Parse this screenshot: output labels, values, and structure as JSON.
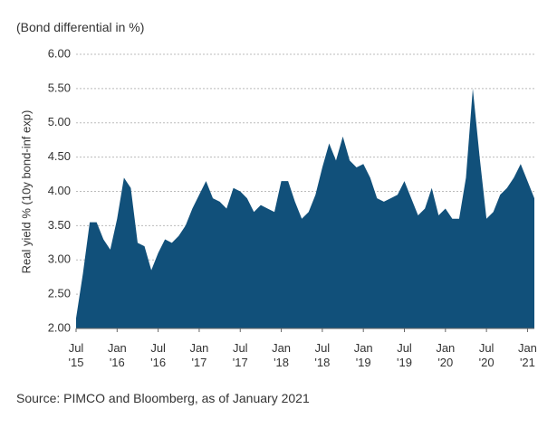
{
  "chart_data": {
    "type": "area",
    "subtitle": "(Bond differential in %)",
    "y_label": "Real yield % (10y bond-inf exp)",
    "source": "Source: PIMCO and Bloomberg, as of January 2021",
    "color": "#11507a",
    "grid": true,
    "x": [
      "2015-07",
      "2015-08",
      "2015-09",
      "2015-10",
      "2015-11",
      "2015-12",
      "2016-01",
      "2016-02",
      "2016-03",
      "2016-04",
      "2016-05",
      "2016-06",
      "2016-07",
      "2016-08",
      "2016-09",
      "2016-10",
      "2016-11",
      "2016-12",
      "2017-01",
      "2017-02",
      "2017-03",
      "2017-04",
      "2017-05",
      "2017-06",
      "2017-07",
      "2017-08",
      "2017-09",
      "2017-10",
      "2017-11",
      "2017-12",
      "2018-01",
      "2018-02",
      "2018-03",
      "2018-04",
      "2018-05",
      "2018-06",
      "2018-07",
      "2018-08",
      "2018-09",
      "2018-10",
      "2018-11",
      "2018-12",
      "2019-01",
      "2019-02",
      "2019-03",
      "2019-04",
      "2019-05",
      "2019-06",
      "2019-07",
      "2019-08",
      "2019-09",
      "2019-10",
      "2019-11",
      "2019-12",
      "2020-01",
      "2020-02",
      "2020-03",
      "2020-04",
      "2020-05",
      "2020-06",
      "2020-07",
      "2020-08",
      "2020-09",
      "2020-10",
      "2020-11",
      "2020-12",
      "2021-01",
      "2021-02"
    ],
    "values": [
      2.15,
      2.8,
      3.55,
      3.55,
      3.3,
      3.15,
      3.6,
      4.2,
      4.05,
      3.25,
      3.2,
      2.85,
      3.1,
      3.3,
      3.25,
      3.35,
      3.5,
      3.75,
      3.95,
      4.15,
      3.9,
      3.85,
      3.75,
      4.05,
      4.0,
      3.9,
      3.7,
      3.8,
      3.75,
      3.7,
      4.15,
      4.15,
      3.85,
      3.6,
      3.7,
      3.95,
      4.35,
      4.7,
      4.45,
      4.8,
      4.45,
      4.35,
      4.4,
      4.2,
      3.9,
      3.85,
      3.9,
      3.95,
      4.15,
      3.9,
      3.65,
      3.75,
      4.05,
      3.65,
      3.75,
      3.6,
      3.6,
      4.2,
      5.5,
      4.5,
      3.6,
      3.7,
      3.95,
      4.05,
      4.2,
      4.4,
      4.15,
      3.9
    ],
    "xlim": [
      "2015-07",
      "2021-02"
    ],
    "xticks": [
      {
        "value": "2015-07",
        "label": "Jul\n'15"
      },
      {
        "value": "2016-01",
        "label": "Jan\n'16"
      },
      {
        "value": "2016-07",
        "label": "Jul\n'16"
      },
      {
        "value": "2017-01",
        "label": "Jan\n'17"
      },
      {
        "value": "2017-07",
        "label": "Jul\n'17"
      },
      {
        "value": "2018-01",
        "label": "Jan\n'18"
      },
      {
        "value": "2018-07",
        "label": "Jul\n'18"
      },
      {
        "value": "2019-01",
        "label": "Jan\n'19"
      },
      {
        "value": "2019-07",
        "label": "Jul\n'19"
      },
      {
        "value": "2020-01",
        "label": "Jan\n'20"
      },
      {
        "value": "2020-07",
        "label": "Jul\n'20"
      },
      {
        "value": "2021-01",
        "label": "Jan\n'21"
      }
    ],
    "ylim": [
      2,
      6
    ],
    "yticks": [
      {
        "value": 2,
        "label": "2.00"
      },
      {
        "value": 2.5,
        "label": "2.50"
      },
      {
        "value": 3,
        "label": "3.00"
      },
      {
        "value": 3.5,
        "label": "3.50"
      },
      {
        "value": 4,
        "label": "4.00"
      },
      {
        "value": 4.5,
        "label": "4.50"
      },
      {
        "value": 5,
        "label": "5.00"
      },
      {
        "value": 5.5,
        "label": "5.50"
      },
      {
        "value": 6,
        "label": "6.00"
      }
    ]
  }
}
